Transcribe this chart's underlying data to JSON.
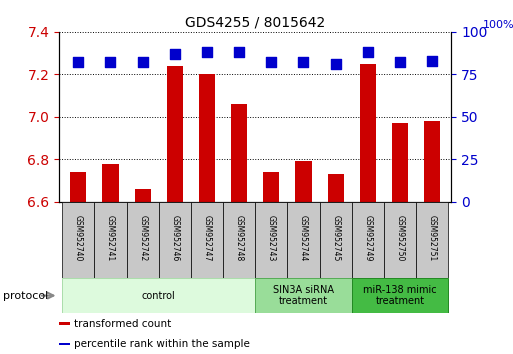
{
  "title": "GDS4255 / 8015642",
  "samples": [
    "GSM952740",
    "GSM952741",
    "GSM952742",
    "GSM952746",
    "GSM952747",
    "GSM952748",
    "GSM952743",
    "GSM952744",
    "GSM952745",
    "GSM952749",
    "GSM952750",
    "GSM952751"
  ],
  "transformed_counts": [
    6.74,
    6.78,
    6.66,
    7.24,
    7.2,
    7.06,
    6.74,
    6.79,
    6.73,
    7.25,
    6.97,
    6.98
  ],
  "percentile_ranks": [
    82,
    82,
    82,
    87,
    88,
    88,
    82,
    82,
    81,
    88,
    82,
    83
  ],
  "ylim_left": [
    6.6,
    7.4
  ],
  "ylim_right": [
    0,
    100
  ],
  "yticks_left": [
    6.6,
    6.8,
    7.0,
    7.2,
    7.4
  ],
  "yticks_right": [
    0,
    25,
    50,
    75,
    100
  ],
  "bar_color": "#cc0000",
  "dot_color": "#0000cc",
  "groups": [
    {
      "label": "control",
      "start": 0,
      "end": 6,
      "color": "#ddfadd",
      "border_color": "#aaddaa"
    },
    {
      "label": "SIN3A siRNA\ntreatment",
      "start": 6,
      "end": 9,
      "color": "#99dd99",
      "border_color": "#55aa55"
    },
    {
      "label": "miR-138 mimic\ntreatment",
      "start": 9,
      "end": 12,
      "color": "#44bb44",
      "border_color": "#228822"
    }
  ],
  "protocol_label": "protocol",
  "legend_items": [
    {
      "label": "transformed count",
      "color": "#cc0000"
    },
    {
      "label": "percentile rank within the sample",
      "color": "#0000cc"
    }
  ],
  "bar_width": 0.5,
  "dot_size": 50,
  "tick_label_color_left": "#cc0000",
  "tick_label_color_right": "#0000cc",
  "sample_box_color": "#c8c8c8",
  "right_axis_label": "100%"
}
